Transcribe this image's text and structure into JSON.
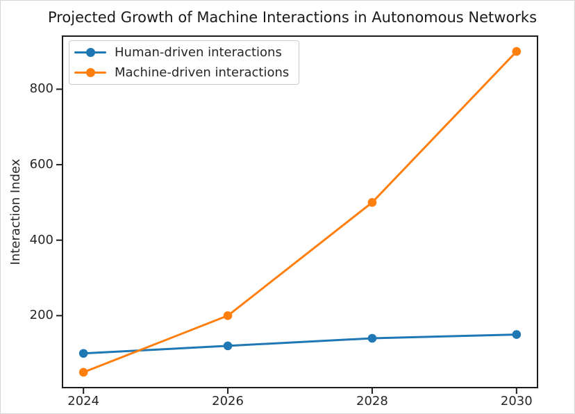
{
  "chart_data": {
    "type": "line",
    "title": "Projected Growth of Machine Interactions in Autonomous Networks",
    "xlabel": "",
    "ylabel": "Interaction Index",
    "x": [
      2024,
      2026,
      2028,
      2030
    ],
    "xticks": [
      "2024",
      "2026",
      "2028",
      "2030"
    ],
    "yticks": [
      200,
      400,
      600,
      800
    ],
    "xlim": [
      2023.7,
      2030.3
    ],
    "ylim": [
      7.5,
      942.5
    ],
    "grid": false,
    "legend_position": "upper left",
    "marker": "circle",
    "series": [
      {
        "name": "Human-driven interactions",
        "color": "#1f77b4",
        "values": [
          100,
          120,
          140,
          150
        ]
      },
      {
        "name": "Machine-driven interactions",
        "color": "#ff7f0e",
        "values": [
          50,
          200,
          500,
          900
        ]
      }
    ],
    "colors": {
      "text": "#262626",
      "spine": "#1c1c1c",
      "legend_border": "#cccccc"
    }
  }
}
